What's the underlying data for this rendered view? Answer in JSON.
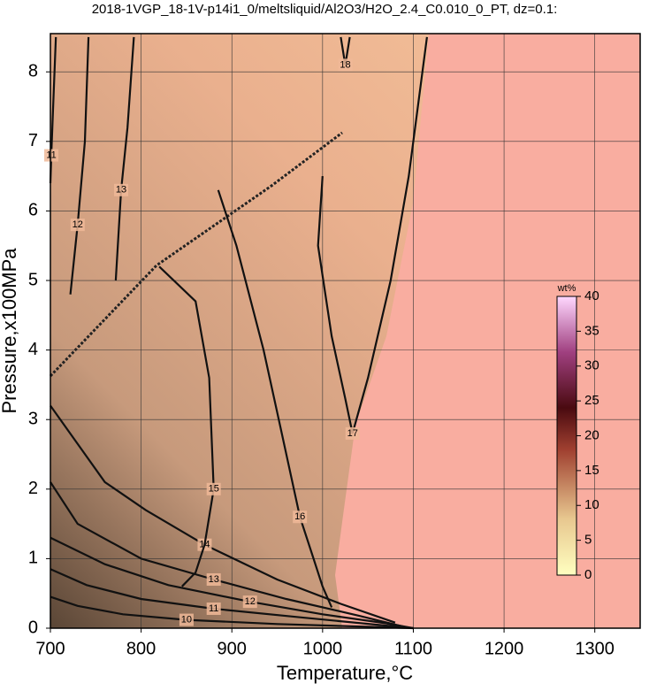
{
  "chart_data": {
    "type": "contour",
    "title": "2018-1VGP_18-1V-p14i1_0/meltsliquid/Al2O3/H2O_2.4_C0.010_0_PT, dz=0.1:",
    "x_label": "Temperature,°C",
    "y_label": "Pressure,x100MPa",
    "xlim": [
      700,
      1350
    ],
    "ylim": [
      0,
      8.55
    ],
    "xticks": [
      700,
      800,
      900,
      1000,
      1100,
      1200,
      1300
    ],
    "yticks": [
      0,
      1,
      2,
      3,
      4,
      5,
      6,
      7,
      8
    ],
    "grid": true,
    "contours": [
      {
        "level": 10,
        "x": [
          700,
          730,
          780,
          850,
          950,
          1050,
          1100
        ],
        "y": [
          0.45,
          0.32,
          0.2,
          0.12,
          0.06,
          0.02,
          0
        ]
      },
      {
        "level": 11,
        "x": [
          700,
          740,
          800,
          880,
          980,
          1060,
          1100
        ],
        "y": [
          0.85,
          0.62,
          0.42,
          0.28,
          0.15,
          0.05,
          0
        ]
      },
      {
        "level": 12,
        "x": [
          700,
          760,
          830,
          920,
          1000,
          1070,
          1100
        ],
        "y": [
          1.3,
          0.92,
          0.62,
          0.38,
          0.2,
          0.07,
          0
        ]
      },
      {
        "level": 13,
        "x": [
          700,
          730,
          800,
          880,
          960,
          1040,
          1090
        ],
        "y": [
          2.1,
          1.5,
          1.0,
          0.7,
          0.42,
          0.18,
          0.02
        ]
      },
      {
        "level": 14,
        "x": [
          700,
          760,
          805,
          870,
          950,
          1020,
          1080
        ],
        "y": [
          3.2,
          2.1,
          1.7,
          1.2,
          0.7,
          0.35,
          0.08
        ]
      },
      {
        "level": 15,
        "x": [
          820,
          860,
          875,
          880,
          870,
          860,
          845
        ],
        "y": [
          5.2,
          4.7,
          3.6,
          2.0,
          1.2,
          0.8,
          0.6
        ]
      },
      {
        "level": 16,
        "x": [
          885,
          905,
          935,
          955,
          975,
          990,
          1000,
          1010
        ],
        "y": [
          6.3,
          5.5,
          4.0,
          2.8,
          1.6,
          1.0,
          0.6,
          0.3
        ]
      },
      {
        "level": 17,
        "x": [
          1000,
          995,
          1010,
          1025,
          1033,
          1050,
          1075,
          1095,
          1115
        ],
        "y": [
          6.5,
          5.5,
          4.2,
          3.3,
          2.8,
          3.6,
          5.0,
          6.5,
          8.5
        ]
      },
      {
        "level": 18,
        "x": [
          1020,
          1025,
          1030
        ],
        "y": [
          8.5,
          8.1,
          8.5
        ]
      },
      {
        "level": 11,
        "x": [
          706,
          703,
          701,
          700
        ],
        "y": [
          8.5,
          7.5,
          6.8,
          6.4
        ]
      },
      {
        "level": 12,
        "x": [
          742,
          738,
          730,
          722
        ],
        "y": [
          8.5,
          7.0,
          5.8,
          4.8
        ]
      },
      {
        "level": 13,
        "x": [
          792,
          785,
          778,
          772
        ],
        "y": [
          8.5,
          7.2,
          6.3,
          5.0
        ]
      }
    ],
    "colorbar": {
      "label": "wt%",
      "lim": [
        0,
        40
      ],
      "ticks": [
        0,
        5,
        10,
        15,
        20,
        25,
        30,
        35,
        40
      ]
    }
  }
}
